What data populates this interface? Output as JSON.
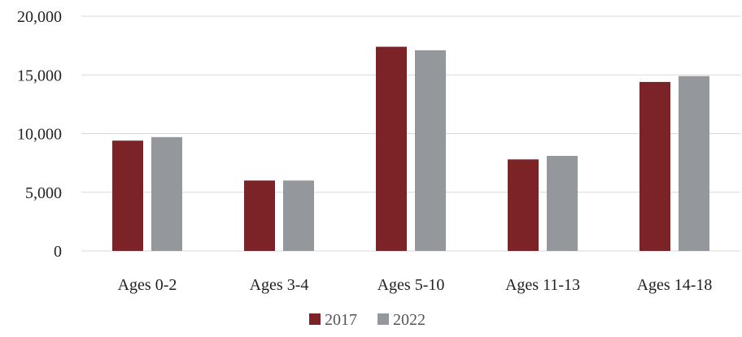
{
  "chart_data": {
    "type": "bar",
    "categories": [
      "Ages 0-2",
      "Ages 3-4",
      "Ages 5-10",
      "Ages 11-13",
      "Ages 14-18"
    ],
    "series": [
      {
        "name": "2017",
        "color": "#7b2327",
        "values": [
          9400,
          6000,
          17400,
          7800,
          14400
        ]
      },
      {
        "name": "2022",
        "color": "#94979c",
        "values": [
          9700,
          6000,
          17100,
          8100,
          14900
        ]
      }
    ],
    "yticks": [
      "0",
      "5,000",
      "10,000",
      "15,000",
      "20,000"
    ],
    "ytick_values": [
      0,
      5000,
      10000,
      15000,
      20000
    ],
    "ylim": [
      0,
      20000
    ],
    "grid": true,
    "legend_position": "bottom-center",
    "title": "",
    "xlabel": "",
    "ylabel": ""
  }
}
